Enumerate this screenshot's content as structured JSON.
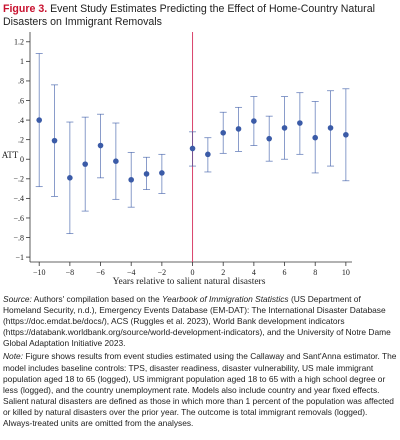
{
  "figure": {
    "label": "Figure 3.",
    "title": "Event Study Estimates Predicting the Effect of Home-Country Natural Disasters on Immigrant Removals"
  },
  "source": {
    "lead": "Source:",
    "text_before": "Authors' compilation based on the",
    "italic": "Yearbook of Immigration Statistics",
    "text_after": "(US Department of Homeland Security, n.d.), Emergency Events Database (EM-DAT): The International Disaster Database (https://doc.emdat.be/docs/), ACS (Ruggles et al. 2023), World Bank development indicators (https://databank.worldbank.org/source/world-development-indicators), and the University of Notre Dame Global Adaptation Initiative 2023."
  },
  "note": {
    "lead": "Note:",
    "text": "Figure shows results from event studies estimated using the Callaway and Sant'Anna estimator. The model includes baseline controls: TPS, disaster readiness, disaster vulnerability, US male immigrant population aged 18 to 65 (logged), US immigrant population aged 18 to 65 with a high school degree or less (logged), and the country unemployment rate. Models also include country and year fixed effects. Salient natural disasters are defined as those in which more than 1 percent of the population was affected or killed by natural disasters over the prior year. The outcome is total immigrant removals (logged). Always-treated units are omitted from the analyses."
  },
  "chart_data": {
    "type": "scatter",
    "xlabel": "Years relative to salient natural disasters",
    "ylabel": "ATT",
    "xlim": [
      -10.6,
      10.4
    ],
    "ylim": [
      -1.05,
      1.3
    ],
    "x_ticks": [
      -10,
      -8,
      -6,
      -4,
      -2,
      0,
      2,
      4,
      6,
      8,
      10
    ],
    "x_tick_labels": [
      "−10",
      "−8",
      "−6",
      "−4",
      "−2",
      "0",
      "2",
      "4",
      "6",
      "8",
      "10"
    ],
    "y_ticks": [
      1.2,
      1.0,
      0.8,
      0.6,
      0.4,
      0.2,
      0,
      -0.2,
      -0.4,
      -0.6,
      -0.8,
      -1.0
    ],
    "y_tick_labels": [
      "1.2",
      "1",
      ".8",
      ".6",
      ".4",
      ".2",
      "0",
      "−.2",
      "−.4",
      "−.6",
      "−.8",
      "−1"
    ],
    "reference_line_x": 0,
    "colors": {
      "points": "#3b5ba7",
      "ci": "#3b5ba7",
      "reference_line": "#d9436b"
    },
    "points": [
      {
        "x": -10,
        "y": 0.4,
        "lo": -0.28,
        "hi": 1.08
      },
      {
        "x": -9,
        "y": 0.19,
        "lo": -0.38,
        "hi": 0.76
      },
      {
        "x": -8,
        "y": -0.19,
        "lo": -0.76,
        "hi": 0.38
      },
      {
        "x": -7,
        "y": -0.05,
        "lo": -0.53,
        "hi": 0.43
      },
      {
        "x": -6,
        "y": 0.14,
        "lo": -0.19,
        "hi": 0.46
      },
      {
        "x": -5,
        "y": -0.02,
        "lo": -0.41,
        "hi": 0.37
      },
      {
        "x": -4,
        "y": -0.21,
        "lo": -0.49,
        "hi": 0.07
      },
      {
        "x": -3,
        "y": -0.15,
        "lo": -0.31,
        "hi": 0.02
      },
      {
        "x": -2,
        "y": -0.14,
        "lo": -0.35,
        "hi": 0.05
      },
      {
        "x": 0,
        "y": 0.11,
        "lo": -0.07,
        "hi": 0.28
      },
      {
        "x": 1,
        "y": 0.05,
        "lo": -0.13,
        "hi": 0.22
      },
      {
        "x": 2,
        "y": 0.27,
        "lo": 0.06,
        "hi": 0.48
      },
      {
        "x": 3,
        "y": 0.31,
        "lo": 0.08,
        "hi": 0.53
      },
      {
        "x": 4,
        "y": 0.39,
        "lo": 0.14,
        "hi": 0.64
      },
      {
        "x": 5,
        "y": 0.21,
        "lo": -0.02,
        "hi": 0.44
      },
      {
        "x": 6,
        "y": 0.32,
        "lo": 0.0,
        "hi": 0.64
      },
      {
        "x": 7,
        "y": 0.37,
        "lo": 0.05,
        "hi": 0.68
      },
      {
        "x": 8,
        "y": 0.22,
        "lo": -0.14,
        "hi": 0.59
      },
      {
        "x": 9,
        "y": 0.32,
        "lo": -0.07,
        "hi": 0.7
      },
      {
        "x": 10,
        "y": 0.25,
        "lo": -0.22,
        "hi": 0.72
      }
    ]
  }
}
